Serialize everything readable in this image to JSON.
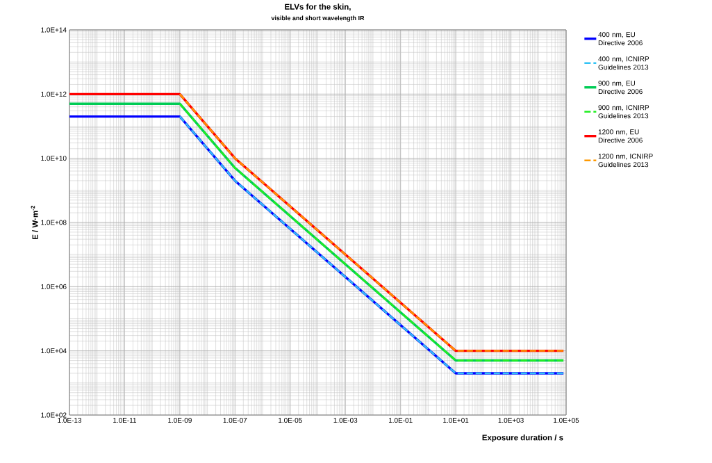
{
  "chart_data": {
    "type": "line",
    "title": "ELVs for the skin,",
    "subtitle": "visible and short wavelength IR",
    "xlabel": "Exposure duration  / s",
    "ylabel": "E / W·m$^{-2}$",
    "log": "xy",
    "grid": true,
    "legend": "right",
    "marker": "none",
    "xlim": [
      1e-13,
      100000.0
    ],
    "ylim": [
      100.0,
      100000000000000.0
    ],
    "xticks": [
      {
        "value": 1e-13,
        "label": "1.0E-13"
      },
      {
        "value": 1e-11,
        "label": "1.0E-11"
      },
      {
        "value": 1e-09,
        "label": "1.0E-09"
      },
      {
        "value": 1e-07,
        "label": "1.0E-07"
      },
      {
        "value": 1e-05,
        "label": "1.0E-05"
      },
      {
        "value": 0.001,
        "label": "1.0E-03"
      },
      {
        "value": 0.1,
        "label": "1.0E-01"
      },
      {
        "value": 10.0,
        "label": "1.0E+01"
      },
      {
        "value": 1000.0,
        "label": "1.0E+03"
      },
      {
        "value": 100000.0,
        "label": "1.0E+05"
      }
    ],
    "yticks": [
      {
        "value": 100.0,
        "label": "1.0E+02"
      },
      {
        "value": 10000.0,
        "label": "1.0E+04"
      },
      {
        "value": 1000000.0,
        "label": "1.0E+06"
      },
      {
        "value": 100000000.0,
        "label": "1.0E+08"
      },
      {
        "value": 10000000000.0,
        "label": "1.0E+10"
      },
      {
        "value": 1000000000000.0,
        "label": "1.0E+12"
      },
      {
        "value": 100000000000000.0,
        "label": "1.0E+14"
      }
    ],
    "series": [
      {
        "name": "400 nm, EU Directive 2006",
        "color": "#0000ff",
        "line_style": "solid",
        "x": [
          1e-13,
          1e-09,
          1e-07,
          10,
          80000.0
        ],
        "values": [
          200000000000.0,
          200000000000.0,
          2000000000.0,
          2000,
          2000
        ]
      },
      {
        "name": "400 nm, ICNIRP Guidelines 2013",
        "color": "#33c3f5",
        "line_style": "dashed",
        "x": [
          1e-09,
          1e-07,
          10,
          80000.0
        ],
        "values": [
          200000000000.0,
          2000000000.0,
          2000,
          2000
        ]
      },
      {
        "name": "900 nm, EU Directive 2006",
        "color": "#00cc55",
        "line_style": "solid",
        "x": [
          1e-13,
          1e-09,
          1e-07,
          10,
          80000.0
        ],
        "values": [
          500000000000.0,
          500000000000.0,
          5000000000.0,
          5000,
          5000
        ]
      },
      {
        "name": "900 nm, ICNIRP Guidelines 2013",
        "color": "#22ee22",
        "line_style": "dashed",
        "x": [
          1e-09,
          1e-07,
          10,
          80000.0
        ],
        "values": [
          500000000000.0,
          5000000000.0,
          5000,
          5000
        ]
      },
      {
        "name": "1200 nm, EU Directive 2006",
        "color": "#ff0000",
        "line_style": "solid",
        "x": [
          1e-13,
          1e-09,
          1e-07,
          10,
          80000.0
        ],
        "values": [
          1000000000000.0,
          1000000000000.0,
          10000000000.0,
          10000,
          10000
        ]
      },
      {
        "name": "1200 nm, ICNIRP Guidelines 2013",
        "color": "#ff9900",
        "line_style": "dashed",
        "x": [
          1e-09,
          1e-07,
          10,
          80000.0
        ],
        "values": [
          1000000000000.0,
          10000000000.0,
          10000,
          10000
        ]
      }
    ]
  }
}
